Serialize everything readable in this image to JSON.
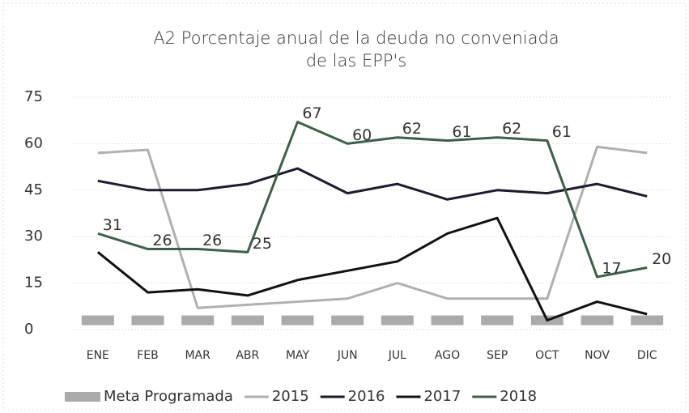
{
  "chart_data": {
    "type": "line",
    "title": [
      "A2 Porcentaje anual de la deuda no conveniada",
      "de las EPP's"
    ],
    "categories": [
      "ENE",
      "FEB",
      "MAR",
      "ABR",
      "MAY",
      "JUN",
      "JUL",
      "AGO",
      "SEP",
      "OCT",
      "NOV",
      "DIC"
    ],
    "ylim": [
      0,
      75
    ],
    "yticks": [
      0,
      15,
      30,
      45,
      60,
      75
    ],
    "grid": true,
    "legend": "bottom",
    "series": [
      {
        "name": "Meta Programada",
        "color": "#aaaaaa",
        "style": "dashed",
        "values": [
          3,
          3,
          3,
          3,
          3,
          3,
          3,
          3,
          3,
          3,
          3,
          3
        ]
      },
      {
        "name": "2015",
        "color": "#b0b0b0",
        "values": [
          57,
          58,
          7,
          8,
          9,
          10,
          15,
          10,
          10,
          10,
          59,
          57
        ]
      },
      {
        "name": "2016",
        "color": "#1c1c2c",
        "values": [
          48,
          45,
          45,
          47,
          52,
          44,
          47,
          42,
          45,
          44,
          47,
          43
        ]
      },
      {
        "name": "2017",
        "color": "#111111",
        "values": [
          25,
          12,
          13,
          11,
          16,
          19,
          22,
          31,
          36,
          3,
          9,
          5
        ]
      },
      {
        "name": "2018",
        "color": "#3f5f4a",
        "data_labels": true,
        "values": [
          31,
          26,
          26,
          25,
          67,
          60,
          62,
          61,
          62,
          61,
          17,
          20
        ]
      }
    ]
  }
}
